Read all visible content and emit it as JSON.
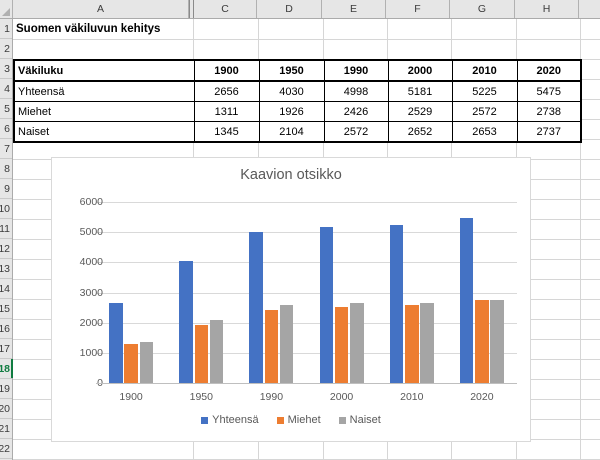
{
  "sheet": {
    "title_cell": "Suomen väkiluvun kehitys",
    "column_headers": [
      "A",
      "C",
      "D",
      "E",
      "F",
      "G",
      "H"
    ],
    "hidden_column_marker_after": "A",
    "row_numbers": [
      1,
      2,
      3,
      4,
      5,
      6,
      7,
      8,
      9,
      10,
      11,
      12,
      13,
      14,
      15,
      16,
      17,
      18,
      19,
      20,
      21,
      22
    ],
    "active_row": 18,
    "table": {
      "header": [
        "Väkiluku",
        "1900",
        "1950",
        "1990",
        "2000",
        "2010",
        "2020"
      ],
      "rows": [
        {
          "label": "Yhteensä",
          "values": [
            2656,
            4030,
            4998,
            5181,
            5225,
            5475
          ]
        },
        {
          "label": "Miehet",
          "values": [
            1311,
            1926,
            2426,
            2529,
            2572,
            2738
          ]
        },
        {
          "label": "Naiset",
          "values": [
            1345,
            2104,
            2572,
            2652,
            2653,
            2737
          ]
        }
      ]
    }
  },
  "chart_data": {
    "type": "bar",
    "title": "Kaavion otsikko",
    "categories": [
      "1900",
      "1950",
      "1990",
      "2000",
      "2010",
      "2020"
    ],
    "series": [
      {
        "name": "Yhteensä",
        "color": "#4472C4",
        "values": [
          2656,
          4030,
          4998,
          5181,
          5225,
          5475
        ]
      },
      {
        "name": "Miehet",
        "color": "#ED7D31",
        "values": [
          1311,
          1926,
          2426,
          2529,
          2572,
          2738
        ]
      },
      {
        "name": "Naiset",
        "color": "#A5A5A5",
        "values": [
          1345,
          2104,
          2572,
          2652,
          2653,
          2737
        ]
      }
    ],
    "ylim": [
      0,
      6000
    ],
    "yticks": [
      0,
      1000,
      2000,
      3000,
      4000,
      5000,
      6000
    ],
    "xlabel": "",
    "ylabel": "",
    "grid": true,
    "legend_position": "bottom",
    "title_color": "#595959",
    "axis_text_color": "#595959"
  },
  "colors": {
    "active_row_green": "#107C41",
    "header_bg": "#E6E6E6",
    "gridline": "#D6D6D6"
  }
}
